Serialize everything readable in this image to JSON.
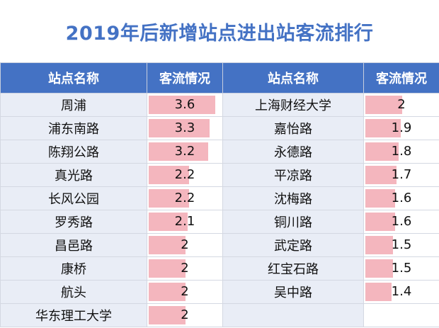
{
  "title": "2019年后新增站点进出站客流排行",
  "headers": {
    "station": "站点名称",
    "flow": "客流情况"
  },
  "chart_data": {
    "type": "table",
    "title": "2019年后新增站点进出站客流排行",
    "bar_max": 3.6,
    "left": [
      {
        "station": "周浦",
        "value": 3.6,
        "label": "3.6"
      },
      {
        "station": "浦东南路",
        "value": 3.3,
        "label": "3.3"
      },
      {
        "station": "陈翔公路",
        "value": 3.2,
        "label": "3.2"
      },
      {
        "station": "真光路",
        "value": 2.2,
        "label": "2.2"
      },
      {
        "station": "长风公园",
        "value": 2.2,
        "label": "2.2"
      },
      {
        "station": "罗秀路",
        "value": 2.1,
        "label": "2.1"
      },
      {
        "station": "昌邑路",
        "value": 2,
        "label": "2"
      },
      {
        "station": "康桥",
        "value": 2,
        "label": "2"
      },
      {
        "station": "航头",
        "value": 2,
        "label": "2"
      },
      {
        "station": "华东理工大学",
        "value": 2,
        "label": "2"
      }
    ],
    "right": [
      {
        "station": "上海财经大学",
        "value": 2,
        "label": "2"
      },
      {
        "station": "嘉怡路",
        "value": 1.9,
        "label": "1.9"
      },
      {
        "station": "永德路",
        "value": 1.8,
        "label": "1.8"
      },
      {
        "station": "平凉路",
        "value": 1.7,
        "label": "1.7"
      },
      {
        "station": "沈梅路",
        "value": 1.6,
        "label": "1.6"
      },
      {
        "station": "铜川路",
        "value": 1.6,
        "label": "1.6"
      },
      {
        "station": "武定路",
        "value": 1.5,
        "label": "1.5"
      },
      {
        "station": "红宝石路",
        "value": 1.5,
        "label": "1.5"
      },
      {
        "station": "吴中路",
        "value": 1.4,
        "label": "1.4"
      }
    ]
  },
  "colors": {
    "header_bg": "#4472c4",
    "title": "#4472c4",
    "bar": "#f4b6be",
    "name_bg": "#e9edf6"
  }
}
